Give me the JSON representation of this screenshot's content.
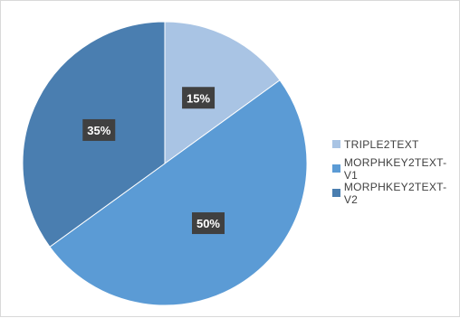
{
  "chart_data": {
    "type": "pie",
    "categories": [
      "TRIPLE2TEXT",
      "MORPHKEY2TEXT-V1",
      "MORPHKEY2TEXT-V2"
    ],
    "values": [
      15,
      50,
      35
    ],
    "data_labels": [
      "15%",
      "50%",
      "35%"
    ],
    "colors": [
      "#a9c4e4",
      "#5b9bd5",
      "#4a7eb0"
    ],
    "legend_position": "right"
  }
}
